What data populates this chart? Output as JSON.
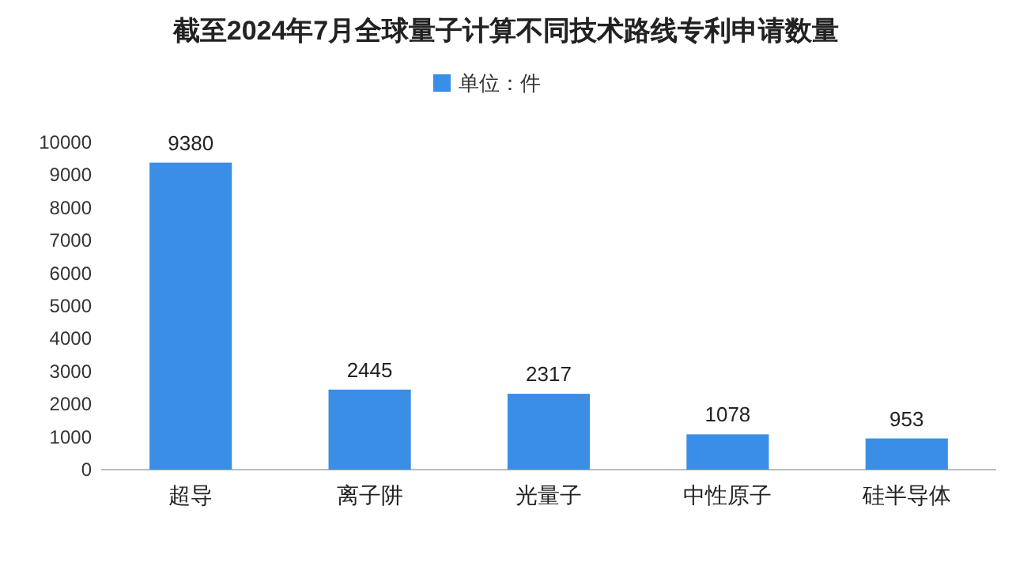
{
  "chart_data": {
    "type": "bar",
    "title": "截至2024年7月全球量子计算不同技术路线专利申请数量",
    "categories": [
      "超导",
      "离子阱",
      "光量子",
      "中性原子",
      "硅半导体"
    ],
    "series": [
      {
        "name": "单位：件",
        "color": "#3a8ee6",
        "values": [
          9380,
          2445,
          2317,
          1078,
          953
        ]
      }
    ],
    "ylim": [
      0,
      10000
    ],
    "yticks": [
      0,
      1000,
      2000,
      3000,
      4000,
      5000,
      6000,
      7000,
      8000,
      9000,
      10000
    ],
    "grid": false,
    "legend": "top",
    "data_labels": true
  }
}
